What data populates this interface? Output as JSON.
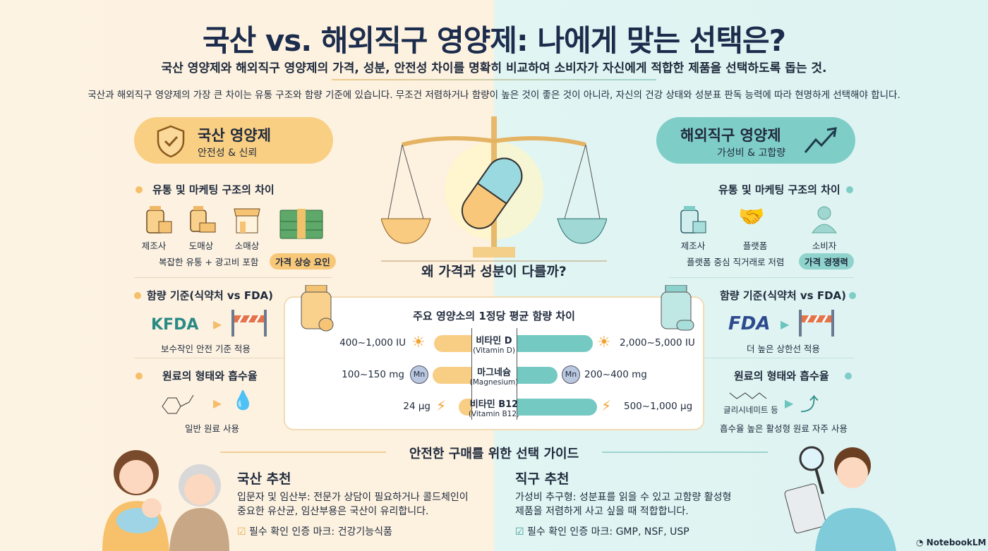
{
  "header": {
    "title": "국산 vs. 해외직구 영양제: 나에게 맞는 선택은?",
    "subtitle": "국산 영양제와 해외직구 영양제의 가격, 성분, 안전성 차이를 명확히 비교하여 소비자가 자신에게 적합한 제품을 선택하도록 돕는 것.",
    "intro": "국산과 해외직구 영양제의 가장 큰 차이는 유통 구조와 함량 기준에 있습니다. 무조건 저렴하거나 함량이 높은 것이 좋은 것이 아니라, 자신의 건강 상태와 성분표 판독 능력에 따라 현명하게 선택해야 합니다."
  },
  "domestic": {
    "title": "국산 영양제",
    "tagline": "안전성 & 신뢰",
    "color": "#f9cf83",
    "distribution": {
      "heading": "유통 및 마케팅 구조의 차이",
      "steps": [
        "제조사",
        "도매상",
        "소매상"
      ],
      "note": "복잡한 유통 + 광고비 포함",
      "tag": "가격 상승 요인"
    },
    "standard": {
      "heading": "함량 기준(식약처 vs FDA)",
      "logo": "KFDA",
      "note": "보수작인 안전 기준 적용"
    },
    "ingredient": {
      "heading": "원료의 형태와 흡수율",
      "note": "일반 원료 사용"
    }
  },
  "overseas": {
    "title": "해외직구 영양제",
    "tagline": "가성비 & 고합량",
    "color": "#7fcdc7",
    "distribution": {
      "heading": "유통 및 마케팅 구조의 차이",
      "steps": [
        "제조사",
        "플랫폼",
        "소비자"
      ],
      "note": "플랫폼 중심 직거래로 저렴",
      "tag": "가격 경쟁력"
    },
    "standard": {
      "heading": "함량 기준(식약처 vs FDA)",
      "logo": "FDA",
      "note": "더 높은 상한선 적용"
    },
    "ingredient": {
      "heading": "원료의 형태와 흡수율",
      "example": "글리시네미트 등",
      "note": "흡수율 높은 활성형 원료 자주 사용"
    }
  },
  "center": {
    "question": "왜 가격과 성분이 다를까?"
  },
  "comparison": {
    "title": "주요 영양소의 1정당 평균 함량 차이",
    "rows": [
      {
        "name": "비타민 D",
        "name_en": "(Vitamin D)",
        "icon": "sun-icon",
        "domestic": "400~1,000 IU",
        "overseas": "2,000~5,000 IU",
        "domestic_level": 0.5,
        "overseas_level": 0.95
      },
      {
        "name": "마그네슘",
        "name_en": "(Magnesium)",
        "icon": "mn-icon",
        "domestic": "100~150 mg",
        "overseas": "200~400 mg",
        "domestic_level": 0.52,
        "overseas_level": 0.5
      },
      {
        "name": "비타민 B12",
        "name_en": "(Vitamin B12)",
        "icon": "lightning-icon",
        "domestic": "24 µg",
        "overseas": "500~1,000 µg",
        "domestic_level": 0.17,
        "overseas_level": 1.0
      }
    ]
  },
  "guide": {
    "title": "안전한 구매를 위한 선택 가이드",
    "domestic": {
      "heading": "국산 추천",
      "lines": [
        "입문자 및 임산부: 전문가 상담이 필요하거나 콜드체인이",
        "중요한 유산균, 임산부용은 국산이 유리합니다."
      ],
      "check": "필수 확인 인증 마크: 건강기능식품"
    },
    "overseas": {
      "heading": "직구 추천",
      "lines": [
        "가성비 추구형: 성분표를 읽을 수 있고 고함량 활성형",
        "제품을 저렴하게 사고 싶을 때 적합합니다."
      ],
      "check": "필수 확인 인증 마크: GMP, NSF, USP"
    }
  },
  "footer": {
    "brand": "NotebookLM"
  }
}
